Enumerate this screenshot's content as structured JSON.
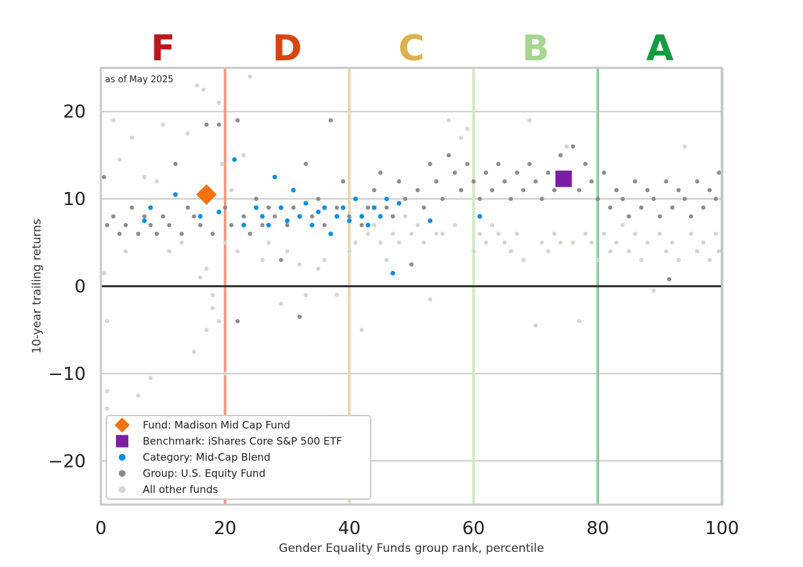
{
  "chart_data": {
    "type": "scatter",
    "title": "",
    "annotation": "as of May 2025",
    "xlabel": "Gender Equality Funds group rank, percentile",
    "ylabel": "10-year trailing returns",
    "xlim": [
      0,
      100
    ],
    "ylim": [
      -25,
      25
    ],
    "x_ticks": [
      0,
      20,
      40,
      60,
      80,
      100
    ],
    "y_ticks": [
      -20,
      -10,
      0,
      10,
      20
    ],
    "x_tick_labels": [
      "0",
      "20",
      "40",
      "60",
      "80",
      "100"
    ],
    "y_tick_labels": [
      "−20",
      "−10",
      "0",
      "10",
      "20"
    ],
    "grid": "horizontal",
    "zero_line": 0,
    "grade_bands": [
      {
        "label": "F",
        "from": 0,
        "to": 20,
        "color": "#c0141c",
        "line_color": "#ee9478"
      },
      {
        "label": "D",
        "from": 20,
        "to": 40,
        "color": "#d9450f",
        "line_color": "#ecd3a2"
      },
      {
        "label": "C",
        "from": 40,
        "to": 60,
        "color": "#dcb052",
        "line_color": "#cfe8c2"
      },
      {
        "label": "B",
        "from": 60,
        "to": 80,
        "color": "#a6d68f",
        "line_color": "#7fcc97"
      },
      {
        "label": "A",
        "from": 80,
        "to": 100,
        "color": "#159b43",
        "line_color": "#9fd3ae"
      }
    ],
    "legend_position": "bottom-left",
    "series": [
      {
        "name": "All other funds",
        "marker": "circle",
        "color": "#d3d8d1",
        "points": [
          [
            0.5,
            1.5
          ],
          [
            1,
            -4
          ],
          [
            1,
            -12
          ],
          [
            1,
            -14
          ],
          [
            2,
            19
          ],
          [
            3,
            14.5
          ],
          [
            4,
            4
          ],
          [
            5,
            17
          ],
          [
            6,
            -12.5
          ],
          [
            7,
            12.5
          ],
          [
            8,
            -10.5
          ],
          [
            9,
            12
          ],
          [
            10,
            18.5
          ],
          [
            11,
            4
          ],
          [
            13,
            5
          ],
          [
            14,
            17.5
          ],
          [
            15,
            -7.5
          ],
          [
            15.5,
            23
          ],
          [
            16,
            1
          ],
          [
            16.5,
            22.5
          ],
          [
            17,
            -5
          ],
          [
            17,
            2
          ],
          [
            18,
            -1
          ],
          [
            18,
            -2.5
          ],
          [
            19,
            21
          ],
          [
            19,
            -4
          ],
          [
            19.5,
            14
          ],
          [
            20,
            -10
          ],
          [
            20,
            5
          ],
          [
            21,
            11
          ],
          [
            22,
            4
          ],
          [
            23,
            15
          ],
          [
            24,
            24
          ],
          [
            25,
            10
          ],
          [
            26,
            3
          ],
          [
            27,
            5
          ],
          [
            29,
            -2
          ],
          [
            30,
            4
          ],
          [
            32,
            2.5
          ],
          [
            33,
            -1
          ],
          [
            35,
            2
          ],
          [
            36,
            3
          ],
          [
            37,
            19
          ],
          [
            38,
            -1
          ],
          [
            40,
            4
          ],
          [
            41,
            5
          ],
          [
            42,
            -5
          ],
          [
            43,
            6
          ],
          [
            44,
            7
          ],
          [
            45,
            5
          ],
          [
            46,
            3
          ],
          [
            47,
            6
          ],
          [
            48,
            5
          ],
          [
            49,
            8
          ],
          [
            50,
            6
          ],
          [
            51,
            7
          ],
          [
            52,
            5
          ],
          [
            53,
            -1.5
          ],
          [
            54,
            6
          ],
          [
            55,
            6
          ],
          [
            56,
            19
          ],
          [
            57,
            7
          ],
          [
            58,
            17
          ],
          [
            59,
            18
          ],
          [
            60,
            4
          ],
          [
            61,
            6
          ],
          [
            62,
            5
          ],
          [
            63,
            7
          ],
          [
            64,
            6
          ],
          [
            65,
            5
          ],
          [
            66,
            4
          ],
          [
            67,
            6
          ],
          [
            68,
            3
          ],
          [
            69,
            19
          ],
          [
            70,
            -4.5
          ],
          [
            71,
            5
          ],
          [
            72,
            4
          ],
          [
            73,
            6
          ],
          [
            74,
            5
          ],
          [
            75,
            16
          ],
          [
            76,
            5
          ],
          [
            77,
            -4
          ],
          [
            78,
            6
          ],
          [
            79,
            5
          ],
          [
            80,
            3
          ],
          [
            81,
            6
          ],
          [
            82,
            4
          ],
          [
            83,
            5
          ],
          [
            84,
            7
          ],
          [
            85,
            4
          ],
          [
            86,
            6
          ],
          [
            87,
            3
          ],
          [
            88,
            5
          ],
          [
            89,
            -0.5
          ],
          [
            90,
            6
          ],
          [
            91,
            4
          ],
          [
            92,
            5
          ],
          [
            93,
            3
          ],
          [
            94,
            16
          ],
          [
            95,
            6
          ],
          [
            96,
            4
          ],
          [
            97,
            5
          ],
          [
            98,
            3
          ],
          [
            99,
            6
          ],
          [
            99.5,
            4
          ]
        ]
      },
      {
        "name": "Group: U.S. Equity Fund",
        "marker": "circle",
        "color": "#8c8c8c",
        "points": [
          [
            0.5,
            12.5
          ],
          [
            1,
            7
          ],
          [
            2,
            8
          ],
          [
            3,
            6
          ],
          [
            4,
            7
          ],
          [
            5,
            9
          ],
          [
            6,
            6
          ],
          [
            7,
            8
          ],
          [
            8,
            7
          ],
          [
            9,
            6
          ],
          [
            10,
            8
          ],
          [
            11,
            7
          ],
          [
            12,
            14
          ],
          [
            13,
            6
          ],
          [
            14,
            9
          ],
          [
            15,
            8
          ],
          [
            16,
            7
          ],
          [
            17,
            18.5
          ],
          [
            18,
            6
          ],
          [
            19,
            18.5
          ],
          [
            20,
            9
          ],
          [
            21,
            7
          ],
          [
            22,
            19
          ],
          [
            22,
            -4
          ],
          [
            23,
            8
          ],
          [
            24,
            6
          ],
          [
            25,
            10
          ],
          [
            26,
            7
          ],
          [
            27,
            9
          ],
          [
            28,
            8
          ],
          [
            29,
            3
          ],
          [
            30,
            7
          ],
          [
            31,
            9
          ],
          [
            32,
            -3.5
          ],
          [
            33,
            14
          ],
          [
            34,
            8
          ],
          [
            35,
            10
          ],
          [
            36,
            7
          ],
          [
            37,
            19
          ],
          [
            38,
            9
          ],
          [
            39,
            12
          ],
          [
            40,
            8
          ],
          [
            41,
            10
          ],
          [
            42,
            7
          ],
          [
            43,
            9
          ],
          [
            44,
            11
          ],
          [
            45,
            13
          ],
          [
            46,
            9
          ],
          [
            47,
            8
          ],
          [
            48,
            12
          ],
          [
            49,
            10
          ],
          [
            50,
            2.5
          ],
          [
            51,
            11
          ],
          [
            52,
            9
          ],
          [
            53,
            14
          ],
          [
            54,
            12
          ],
          [
            55,
            10
          ],
          [
            56,
            15
          ],
          [
            57,
            13
          ],
          [
            58,
            11
          ],
          [
            59,
            14
          ],
          [
            60,
            12
          ],
          [
            61,
            10
          ],
          [
            62,
            13
          ],
          [
            63,
            11
          ],
          [
            64,
            14
          ],
          [
            65,
            12
          ],
          [
            66,
            10
          ],
          [
            67,
            13
          ],
          [
            68,
            11
          ],
          [
            69,
            14
          ],
          [
            70,
            12
          ],
          [
            71,
            10
          ],
          [
            72,
            13
          ],
          [
            73,
            11
          ],
          [
            74,
            15
          ],
          [
            75,
            12
          ],
          [
            76,
            16
          ],
          [
            77,
            11
          ],
          [
            78,
            14
          ],
          [
            79,
            12
          ],
          [
            80,
            10
          ],
          [
            81,
            13
          ],
          [
            82,
            9
          ],
          [
            83,
            11
          ],
          [
            84,
            10
          ],
          [
            85,
            8
          ],
          [
            86,
            12
          ],
          [
            87,
            9
          ],
          [
            88,
            11
          ],
          [
            89,
            10
          ],
          [
            90,
            8
          ],
          [
            91,
            12
          ],
          [
            91.5,
            0.8
          ],
          [
            92,
            9
          ],
          [
            93,
            11
          ],
          [
            94,
            10
          ],
          [
            95,
            8
          ],
          [
            96,
            12
          ],
          [
            97,
            9
          ],
          [
            98,
            11
          ],
          [
            99,
            10
          ],
          [
            99.5,
            13
          ]
        ]
      },
      {
        "name": "Category: Mid-Cap Blend",
        "marker": "circle",
        "color": "#0b8fe0",
        "points": [
          [
            7,
            7.5
          ],
          [
            8,
            9
          ],
          [
            12,
            10.5
          ],
          [
            16,
            8
          ],
          [
            19,
            8.5
          ],
          [
            21.5,
            14.5
          ],
          [
            23,
            7
          ],
          [
            25,
            9
          ],
          [
            26,
            8
          ],
          [
            27,
            7
          ],
          [
            28,
            12.5
          ],
          [
            29,
            9
          ],
          [
            30,
            7.5
          ],
          [
            31,
            11
          ],
          [
            32,
            8
          ],
          [
            33,
            9.5
          ],
          [
            34,
            7
          ],
          [
            35,
            8.5
          ],
          [
            36,
            9
          ],
          [
            37,
            6
          ],
          [
            38,
            8
          ],
          [
            39,
            9
          ],
          [
            40,
            7.5
          ],
          [
            41,
            10
          ],
          [
            42,
            8
          ],
          [
            43,
            7
          ],
          [
            44,
            9
          ],
          [
            45,
            8
          ],
          [
            46,
            10
          ],
          [
            47,
            1.5
          ],
          [
            48,
            9.5
          ],
          [
            53,
            7.5
          ],
          [
            61,
            8
          ]
        ]
      },
      {
        "name": "Fund: Madison Mid Cap Fund",
        "marker": "diamond",
        "color": "#f4720b",
        "points": [
          [
            17,
            10.5
          ]
        ]
      },
      {
        "name": "Benchmark: iShares Core S&P 500 ETF",
        "marker": "square",
        "color": "#7b1fa2",
        "points": [
          [
            74.5,
            12.3
          ]
        ]
      }
    ]
  }
}
